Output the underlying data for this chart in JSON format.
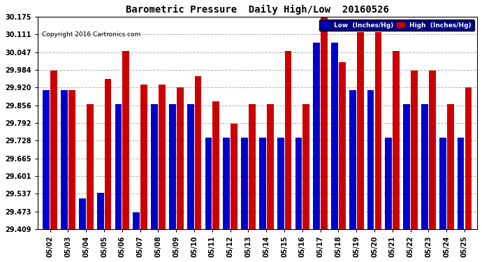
{
  "title": "Barometric Pressure  Daily High/Low  20160526",
  "copyright": "Copyright 2016 Cartronics.com",
  "legend_low": "Low  (Inches/Hg)",
  "legend_high": "High  (Inches/Hg)",
  "dates": [
    "05/02",
    "05/03",
    "05/04",
    "05/05",
    "05/06",
    "05/07",
    "05/08",
    "05/09",
    "05/10",
    "05/11",
    "05/12",
    "05/13",
    "05/14",
    "05/15",
    "05/16",
    "05/17",
    "05/18",
    "05/19",
    "05/20",
    "05/21",
    "05/22",
    "05/23",
    "05/24",
    "05/25"
  ],
  "low_values": [
    29.91,
    29.91,
    29.52,
    29.54,
    29.86,
    29.47,
    29.86,
    29.86,
    29.86,
    29.74,
    29.74,
    29.74,
    29.74,
    29.74,
    29.74,
    30.08,
    30.08,
    29.91,
    29.91,
    29.74,
    29.86,
    29.86,
    29.74,
    29.74
  ],
  "high_values": [
    29.98,
    29.91,
    29.86,
    29.95,
    30.05,
    29.93,
    29.93,
    29.92,
    29.96,
    29.87,
    29.79,
    29.86,
    29.86,
    30.05,
    29.86,
    30.18,
    30.01,
    30.12,
    30.12,
    30.05,
    29.98,
    29.98,
    29.86,
    29.92
  ],
  "low_color": "#0000cc",
  "high_color": "#cc0000",
  "bg_color": "#ffffff",
  "plot_bg_color": "#ffffff",
  "grid_color": "#aaaaaa",
  "ymin": 29.409,
  "ymax": 30.175,
  "yticks": [
    29.409,
    29.473,
    29.537,
    29.601,
    29.665,
    29.728,
    29.792,
    29.856,
    29.92,
    29.984,
    30.047,
    30.111,
    30.175
  ]
}
